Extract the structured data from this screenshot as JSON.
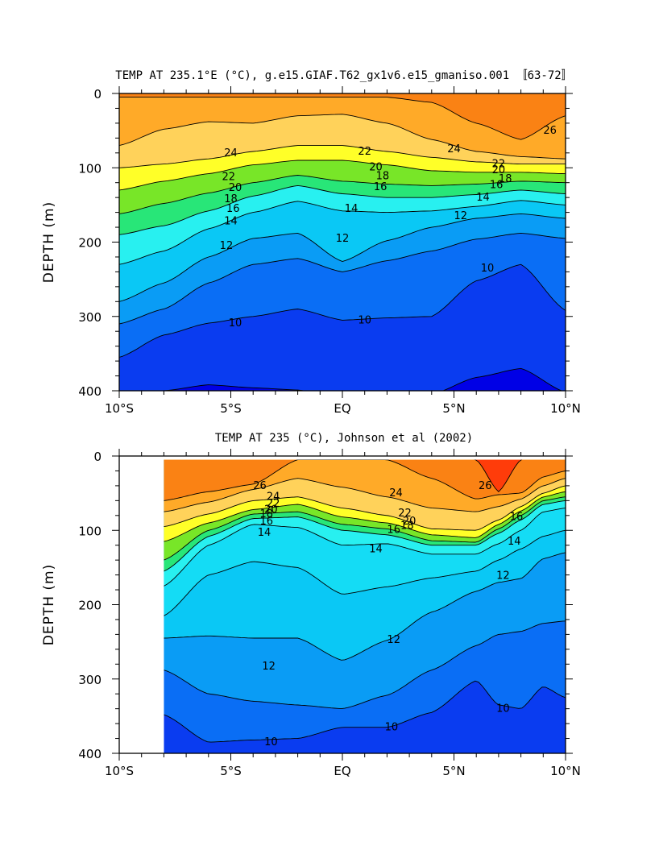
{
  "chart_data": [
    {
      "type": "heatmap",
      "subtype": "filled-contour-section",
      "title": "TEMP AT 235.1°E (°C), g.e15.GIAF.T62_gx1v6.e15_gmaniso.001 〚63-72〛",
      "xlabel": "",
      "ylabel": "DEPTH (m)",
      "xlim": [
        -10,
        10
      ],
      "ylim": [
        0,
        400
      ],
      "y_inverted": true,
      "x_ticks": [
        -10,
        -5,
        0,
        5,
        10
      ],
      "x_tick_labels": [
        "10°S",
        "5°S",
        "EQ",
        "5°N",
        "10°N"
      ],
      "y_ticks": [
        0,
        100,
        200,
        300,
        400
      ],
      "y_tick_labels": [
        "0",
        "100",
        "200",
        "300",
        "400"
      ],
      "contour_interval": 1,
      "x": [
        -10,
        -8,
        -6,
        -4,
        -2,
        0,
        2,
        4,
        6,
        8,
        10
      ],
      "depth_of_isotherm": {
        "26": [
          5,
          5,
          5,
          5,
          5,
          5,
          5,
          12,
          40,
          62,
          30
        ],
        "24": [
          70,
          48,
          38,
          40,
          30,
          28,
          40,
          62,
          78,
          85,
          88
        ],
        "22": [
          100,
          95,
          88,
          78,
          70,
          70,
          78,
          86,
          92,
          95,
          95
        ],
        "20": [
          130,
          118,
          108,
          96,
          90,
          90,
          96,
          104,
          106,
          106,
          108
        ],
        "18": [
          162,
          148,
          134,
          120,
          110,
          118,
          122,
          124,
          122,
          118,
          120
        ],
        "16": [
          190,
          178,
          158,
          138,
          124,
          135,
          140,
          140,
          136,
          130,
          135
        ],
        "14": [
          230,
          212,
          182,
          160,
          145,
          158,
          160,
          158,
          152,
          144,
          150
        ],
        "12": [
          280,
          255,
          220,
          195,
          188,
          226,
          198,
          180,
          168,
          162,
          168
        ],
        "11": [
          310,
          290,
          255,
          230,
          222,
          240,
          225,
          212,
          196,
          188,
          195
        ],
        "10": [
          355,
          325,
          309,
          300,
          290,
          305,
          302,
          300,
          252,
          230,
          292
        ],
        "9": [
          405,
          400,
          392,
          396,
          399,
          410,
          410,
          405,
          382,
          370,
          402
        ]
      },
      "contour_labels": [
        {
          "value": "24",
          "lat": -5.0,
          "depth": 80
        },
        {
          "value": "22",
          "lat": -5.1,
          "depth": 112
        },
        {
          "value": "20",
          "lat": -4.8,
          "depth": 127
        },
        {
          "value": "18",
          "lat": -5.0,
          "depth": 142
        },
        {
          "value": "16",
          "lat": -4.9,
          "depth": 155
        },
        {
          "value": "14",
          "lat": -5.0,
          "depth": 172
        },
        {
          "value": "12",
          "lat": -5.2,
          "depth": 205
        },
        {
          "value": "12",
          "lat": 0.0,
          "depth": 195
        },
        {
          "value": "10",
          "lat": -4.8,
          "depth": 309
        },
        {
          "value": "10",
          "lat": 1.0,
          "depth": 305
        },
        {
          "value": "22",
          "lat": 1.0,
          "depth": 78
        },
        {
          "value": "20",
          "lat": 1.5,
          "depth": 99
        },
        {
          "value": "18",
          "lat": 1.8,
          "depth": 111
        },
        {
          "value": "16",
          "lat": 1.7,
          "depth": 126
        },
        {
          "value": "14",
          "lat": 0.4,
          "depth": 155
        },
        {
          "value": "24",
          "lat": 5.0,
          "depth": 75
        },
        {
          "value": "22",
          "lat": 7.0,
          "depth": 95
        },
        {
          "value": "20",
          "lat": 7.0,
          "depth": 103
        },
        {
          "value": "18",
          "lat": 7.3,
          "depth": 115
        },
        {
          "value": "16",
          "lat": 6.9,
          "depth": 123
        },
        {
          "value": "14",
          "lat": 6.3,
          "depth": 140
        },
        {
          "value": "12",
          "lat": 5.3,
          "depth": 165
        },
        {
          "value": "10",
          "lat": 6.5,
          "depth": 235
        },
        {
          "value": "26",
          "lat": 9.3,
          "depth": 50
        }
      ]
    },
    {
      "type": "heatmap",
      "subtype": "filled-contour-section",
      "title": "TEMP AT 235 (°C), Johnson et al (2002)",
      "xlabel": "",
      "ylabel": "DEPTH (m)",
      "xlim": [
        -10,
        10
      ],
      "ylim": [
        0,
        400
      ],
      "y_inverted": true,
      "data_lat_range": [
        -8,
        10
      ],
      "data_depth_range": [
        5,
        400
      ],
      "x_ticks": [
        -10,
        -5,
        0,
        5,
        10
      ],
      "x_tick_labels": [
        "10°S",
        "5°S",
        "EQ",
        "5°N",
        "10°N"
      ],
      "y_ticks": [
        0,
        100,
        200,
        300,
        400
      ],
      "y_tick_labels": [
        "0",
        "100",
        "200",
        "300",
        "400"
      ],
      "contour_interval": 1,
      "x": [
        -8,
        -6,
        -4,
        -2,
        0,
        2,
        4,
        6,
        7,
        8,
        9,
        10
      ],
      "depth_of_isotherm": {
        "28": [
          -10,
          -10,
          -10,
          -10,
          -10,
          -10,
          -10,
          5,
          48,
          5,
          -10,
          -10
        ],
        "26": [
          60,
          48,
          38,
          5,
          5,
          5,
          30,
          58,
          52,
          50,
          28,
          20
        ],
        "24": [
          75,
          62,
          45,
          30,
          42,
          55,
          70,
          75,
          68,
          58,
          40,
          30
        ],
        "22": [
          95,
          78,
          60,
          55,
          70,
          80,
          98,
          100,
          86,
          68,
          50,
          40
        ],
        "20": [
          115,
          90,
          72,
          65,
          82,
          90,
          106,
          110,
          92,
          74,
          55,
          48
        ],
        "18": [
          140,
          100,
          78,
          75,
          92,
          98,
          114,
          116,
          98,
          80,
          60,
          55
        ],
        "16": [
          155,
          108,
          84,
          82,
          100,
          106,
          120,
          120,
          104,
          86,
          65,
          60
        ],
        "14": [
          175,
          120,
          92,
          96,
          120,
          118,
          132,
          132,
          118,
          100,
          75,
          70
        ],
        "13": [
          215,
          160,
          142,
          150,
          186,
          176,
          164,
          155,
          140,
          125,
          108,
          100
        ],
        "12": [
          245,
          242,
          245,
          245,
          275,
          248,
          210,
          182,
          170,
          165,
          138,
          130
        ],
        "11": [
          288,
          320,
          330,
          335,
          340,
          322,
          288,
          255,
          240,
          236,
          225,
          222
        ],
        "10": [
          348,
          385,
          382,
          380,
          365,
          365,
          345,
          302,
          335,
          340,
          310,
          325
        ]
      },
      "contour_labels": [
        {
          "value": "26",
          "lat": -3.7,
          "depth": 40
        },
        {
          "value": "24",
          "lat": -3.1,
          "depth": 55
        },
        {
          "value": "22",
          "lat": -3.1,
          "depth": 64
        },
        {
          "value": "20",
          "lat": -3.2,
          "depth": 72
        },
        {
          "value": "18",
          "lat": -3.4,
          "depth": 78
        },
        {
          "value": "16",
          "lat": -3.4,
          "depth": 88
        },
        {
          "value": "14",
          "lat": -3.5,
          "depth": 103
        },
        {
          "value": "24",
          "lat": 2.4,
          "depth": 50
        },
        {
          "value": "22",
          "lat": 2.8,
          "depth": 77
        },
        {
          "value": "20",
          "lat": 3.0,
          "depth": 88
        },
        {
          "value": "18",
          "lat": 2.9,
          "depth": 94
        },
        {
          "value": "16",
          "lat": 2.3,
          "depth": 99
        },
        {
          "value": "14",
          "lat": 1.5,
          "depth": 125
        },
        {
          "value": "26",
          "lat": 6.4,
          "depth": 40
        },
        {
          "value": "16",
          "lat": 7.8,
          "depth": 82
        },
        {
          "value": "14",
          "lat": 7.7,
          "depth": 115
        },
        {
          "value": "12",
          "lat": 7.2,
          "depth": 161
        },
        {
          "value": "12",
          "lat": 2.3,
          "depth": 247
        },
        {
          "value": "12",
          "lat": -3.3,
          "depth": 283
        },
        {
          "value": "10",
          "lat": 7.2,
          "depth": 340
        },
        {
          "value": "10",
          "lat": 2.2,
          "depth": 365
        },
        {
          "value": "10",
          "lat": -3.2,
          "depth": 385
        }
      ]
    }
  ],
  "colors": {
    "palette_by_temp_floor": {
      "8": "#0000e6",
      "9": "#0a3cf0",
      "10": "#0a6ef5",
      "11": "#0a9cf5",
      "12": "#0ac8f5",
      "13": "#14dcf5",
      "14": "#28f0f0",
      "15": "#28f0c8",
      "16": "#28e678",
      "17": "#28dc28",
      "18": "#78e628",
      "19": "#c8f028",
      "20": "#ffff28",
      "21": "#fff064",
      "22": "#ffd25a",
      "23": "#ffbe3c",
      "24": "#ffaa28",
      "25": "#ff9628",
      "26": "#fa8214",
      "27": "#ff5a14",
      "28": "#ff3c0a"
    },
    "contour_line": "#000000",
    "frame": "#000000"
  }
}
